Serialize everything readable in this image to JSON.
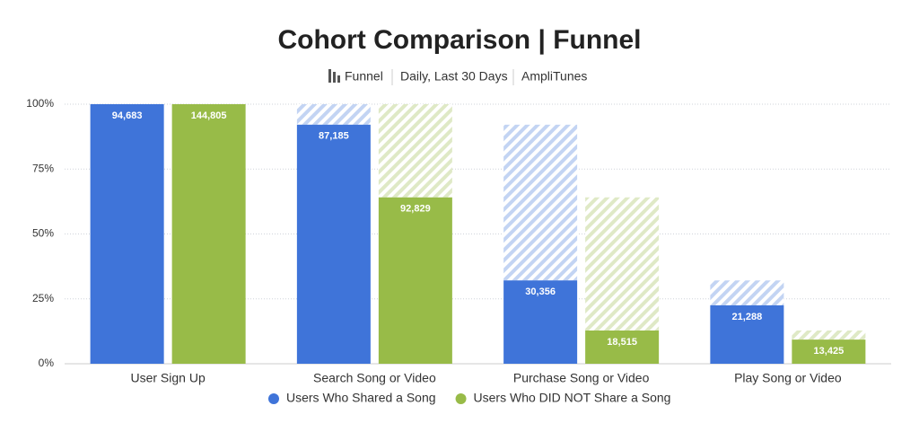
{
  "chart_data": {
    "type": "funnel",
    "title": "Cohort Comparison | Funnel",
    "subtitle": [
      "Funnel",
      "Daily, Last 30 Days",
      "AmpliTunes"
    ],
    "categories": [
      "User Sign Up",
      "Search Song or Video",
      "Purchase Song or Video",
      "Play Song or Video"
    ],
    "series": [
      {
        "name": "Users Who Shared a Song",
        "color": "#3f74d9",
        "hatch_color": "#c3d4f3",
        "values": [
          100,
          92.1,
          32.1,
          22.5
        ],
        "count_labels": [
          "94,683",
          "87,185",
          "30,356",
          "21,288"
        ]
      },
      {
        "name": "Users Who DID NOT Share a Song",
        "color": "#98bb48",
        "hatch_color": "#dfe9c6",
        "values": [
          100,
          64.1,
          12.8,
          9.3
        ],
        "count_labels": [
          "144,805",
          "92,829",
          "18,515",
          "13,425"
        ]
      }
    ],
    "ylim": [
      0,
      100
    ],
    "yticks": [
      {
        "value": 0,
        "label": "0%"
      },
      {
        "value": 25,
        "label": "25%"
      },
      {
        "value": 50,
        "label": "50%"
      },
      {
        "value": 75,
        "label": "75%"
      },
      {
        "value": 100,
        "label": "100%"
      }
    ],
    "grid": true
  }
}
